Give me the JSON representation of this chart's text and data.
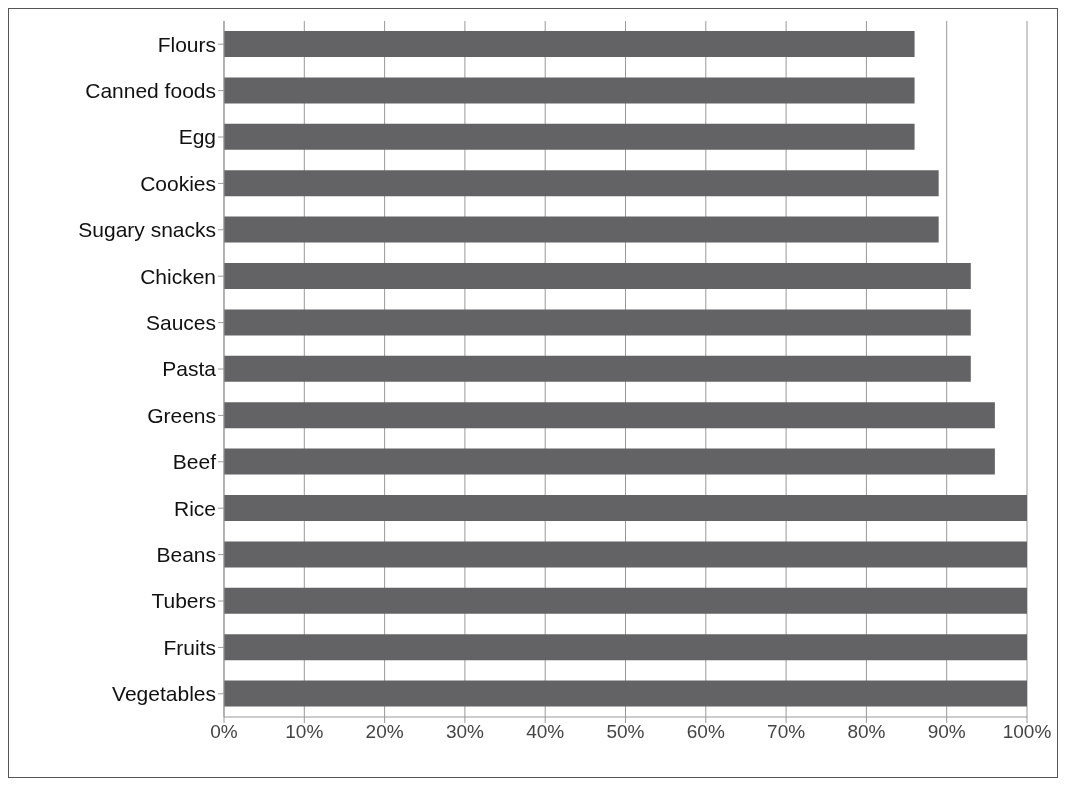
{
  "chart_data": {
    "type": "bar",
    "orientation": "horizontal",
    "categories": [
      "Flours",
      "Canned foods",
      "Egg",
      "Cookies",
      "Sugary snacks",
      "Chicken",
      "Sauces",
      "Pasta",
      "Greens",
      "Beef",
      "Rice",
      "Beans",
      "Tubers",
      "Fruits",
      "Vegetables"
    ],
    "values": [
      86,
      86,
      86,
      89,
      89,
      93,
      93,
      93,
      96,
      96,
      100,
      100,
      100,
      100,
      100
    ],
    "color": "#636365",
    "xlim": [
      0,
      100
    ],
    "xticks": [
      {
        "value": 0,
        "label": "0%"
      },
      {
        "value": 10,
        "label": "10%"
      },
      {
        "value": 20,
        "label": "20%"
      },
      {
        "value": 30,
        "label": "30%"
      },
      {
        "value": 40,
        "label": "40%"
      },
      {
        "value": 50,
        "label": "50%"
      },
      {
        "value": 60,
        "label": "60%"
      },
      {
        "value": 70,
        "label": "70%"
      },
      {
        "value": 80,
        "label": "80%"
      },
      {
        "value": 90,
        "label": "90%"
      },
      {
        "value": 100,
        "label": "100%"
      }
    ],
    "grid": "x"
  }
}
